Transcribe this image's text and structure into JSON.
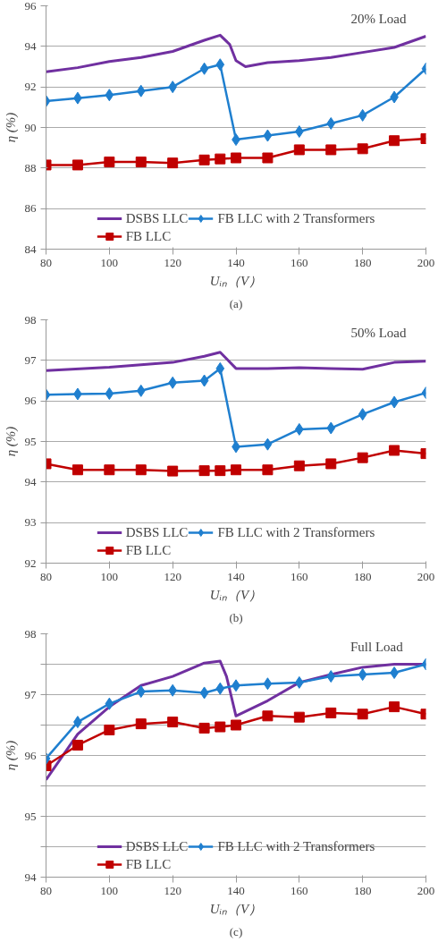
{
  "chart_data": [
    {
      "type": "line",
      "title": "20% Load",
      "x": [
        80,
        90,
        100,
        110,
        120,
        130,
        135,
        140,
        150,
        160,
        170,
        180,
        190,
        200
      ],
      "xlabel": "Uᵢₙ（V）",
      "ylabel": "η (%)",
      "xlim": [
        80,
        200
      ],
      "xticks": [
        80,
        100,
        120,
        140,
        160,
        180,
        200
      ],
      "ylim": [
        84,
        96
      ],
      "yticks": [
        84,
        86,
        88,
        90,
        92,
        94,
        96
      ],
      "grid": "y",
      "legend": "bottom",
      "annotations": [
        "(a)"
      ],
      "series": [
        {
          "name": "DSBS LLC",
          "color": "#7030a0",
          "marker": "none",
          "x": [
            80,
            90,
            100,
            110,
            120,
            130,
            135,
            138,
            140,
            143,
            150,
            160,
            170,
            180,
            190,
            200
          ],
          "values": [
            92.75,
            92.95,
            93.25,
            93.45,
            93.75,
            94.3,
            94.55,
            94.1,
            93.3,
            93.0,
            93.2,
            93.3,
            93.45,
            93.7,
            93.95,
            94.5
          ]
        },
        {
          "name": "FB LLC",
          "color": "#c00000",
          "marker": "square",
          "values": [
            88.15,
            88.15,
            88.3,
            88.3,
            88.25,
            88.4,
            88.45,
            88.5,
            88.5,
            88.9,
            88.9,
            88.95,
            89.35,
            89.45
          ]
        },
        {
          "name": "FB LLC with 2 Transformers",
          "color": "#1f7fcf",
          "marker": "diamond",
          "values": [
            91.3,
            91.45,
            91.6,
            91.8,
            92.0,
            92.9,
            93.1,
            89.4,
            89.6,
            89.8,
            90.2,
            90.6,
            91.5,
            92.9
          ]
        }
      ]
    },
    {
      "type": "line",
      "title": "50% Load",
      "x": [
        80,
        90,
        100,
        110,
        120,
        130,
        135,
        140,
        150,
        160,
        170,
        180,
        190,
        200
      ],
      "xlabel": "Uᵢₙ（V）",
      "ylabel": "η (%)",
      "xlim": [
        80,
        200
      ],
      "xticks": [
        80,
        100,
        120,
        140,
        160,
        180,
        200
      ],
      "ylim": [
        92,
        98
      ],
      "yticks": [
        92,
        93,
        94,
        95,
        96,
        97,
        98
      ],
      "grid": "y",
      "legend": "bottom",
      "annotations": [
        "(b)"
      ],
      "series": [
        {
          "name": "DSBS LLC",
          "color": "#7030a0",
          "marker": "none",
          "x": [
            80,
            100,
            120,
            130,
            135,
            140,
            150,
            160,
            170,
            180,
            190,
            200
          ],
          "values": [
            96.75,
            96.83,
            96.95,
            97.1,
            97.2,
            96.8,
            96.8,
            96.82,
            96.8,
            96.78,
            96.95,
            96.98
          ]
        },
        {
          "name": "FB LLC",
          "color": "#c00000",
          "marker": "square",
          "values": [
            94.45,
            94.3,
            94.3,
            94.3,
            94.27,
            94.28,
            94.28,
            94.3,
            94.3,
            94.4,
            94.45,
            94.6,
            94.78,
            94.7
          ]
        },
        {
          "name": "FB LLC with 2 Transformers",
          "color": "#1f7fcf",
          "marker": "diamond",
          "values": [
            96.15,
            96.17,
            96.18,
            96.25,
            96.45,
            96.5,
            96.8,
            94.87,
            94.93,
            95.3,
            95.33,
            95.67,
            95.97,
            96.2
          ]
        }
      ]
    },
    {
      "type": "line",
      "title": "Full  Load",
      "x": [
        80,
        90,
        100,
        110,
        120,
        130,
        135,
        140,
        150,
        160,
        170,
        180,
        190,
        200
      ],
      "xlabel": "Uᵢₙ（V）",
      "ylabel": "η (%)",
      "xlim": [
        80,
        200
      ],
      "xticks": [
        80,
        100,
        120,
        140,
        160,
        180,
        200
      ],
      "ylim": [
        94,
        98
      ],
      "yticks": [
        94,
        {
          "value": 94.5,
          "label": null
        },
        95,
        {
          "value": 95.5,
          "label": null
        },
        96,
        {
          "value": 96.5,
          "label": null
        },
        97,
        {
          "value": 97.5,
          "label": null
        },
        98
      ],
      "grid": "y",
      "legend": "bottom",
      "annotations": [
        "(c)"
      ],
      "series": [
        {
          "name": "DSBS LLC",
          "color": "#7030a0",
          "marker": "none",
          "x": [
            80,
            90,
            100,
            110,
            120,
            130,
            135,
            137,
            140,
            150,
            160,
            170,
            180,
            190,
            200
          ],
          "values": [
            95.6,
            96.35,
            96.8,
            97.15,
            97.3,
            97.52,
            97.55,
            97.3,
            96.65,
            96.9,
            97.2,
            97.33,
            97.45,
            97.5,
            97.5
          ]
        },
        {
          "name": "FB LLC",
          "color": "#c00000",
          "marker": "square",
          "values": [
            95.83,
            96.17,
            96.42,
            96.52,
            96.55,
            96.45,
            96.47,
            96.5,
            96.65,
            96.63,
            96.7,
            96.68,
            96.8,
            96.68
          ]
        },
        {
          "name": "FB LLC with 2 Transformers",
          "color": "#1f7fcf",
          "marker": "diamond",
          "values": [
            95.95,
            96.55,
            96.85,
            97.05,
            97.07,
            97.03,
            97.1,
            97.15,
            97.18,
            97.2,
            97.3,
            97.33,
            97.36,
            97.5
          ]
        }
      ]
    }
  ]
}
